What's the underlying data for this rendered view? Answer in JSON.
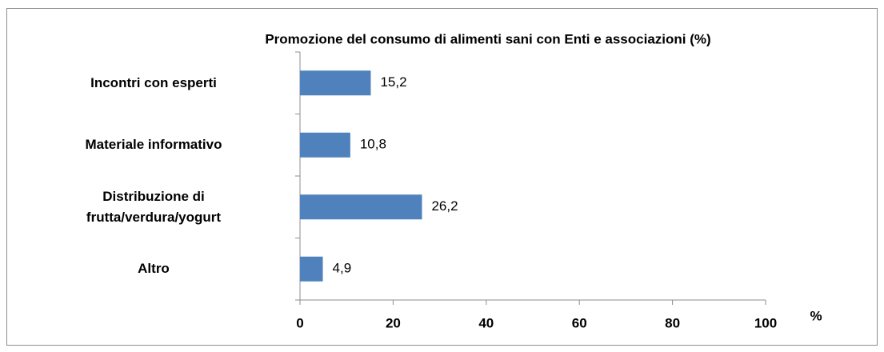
{
  "chart_data": {
    "type": "hbar",
    "title": "Promozione del consumo di alimenti sani con Enti e associazioni (%)",
    "categories": [
      "Incontri con esperti",
      "Materiale informativo",
      "Distribuzione di\nfrutta/verdura/yogurt",
      "Altro"
    ],
    "values": [
      15.2,
      10.8,
      26.2,
      4.9
    ],
    "value_labels": [
      "15,2",
      "10,8",
      "26,2",
      "4,9"
    ],
    "color": "#4f81bd",
    "xlabel": "%",
    "xlim": [
      0,
      100
    ],
    "xticks": [
      0,
      20,
      40,
      60,
      80,
      100
    ],
    "grid": false
  }
}
